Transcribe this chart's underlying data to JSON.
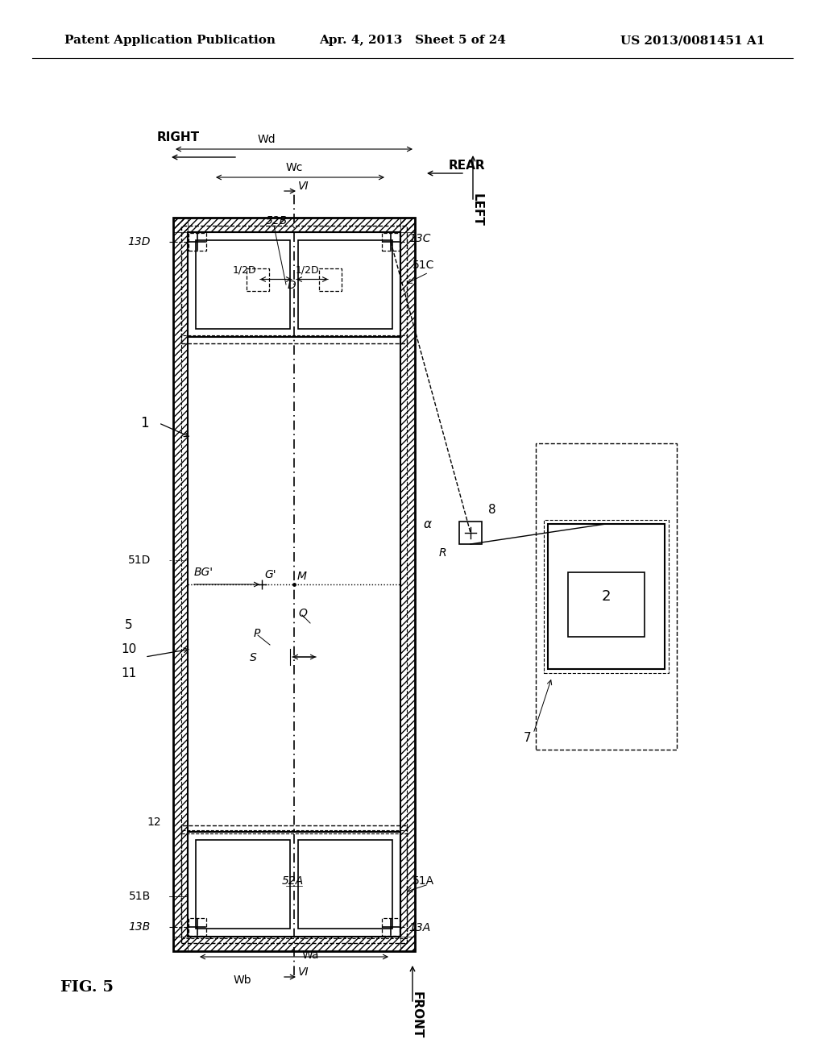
{
  "bg_color": "#ffffff",
  "header_left": "Patent Application Publication",
  "header_mid": "Apr. 4, 2013   Sheet 5 of 24",
  "header_right": "US 2013/0081451 A1",
  "fig_label": "FIG. 5"
}
